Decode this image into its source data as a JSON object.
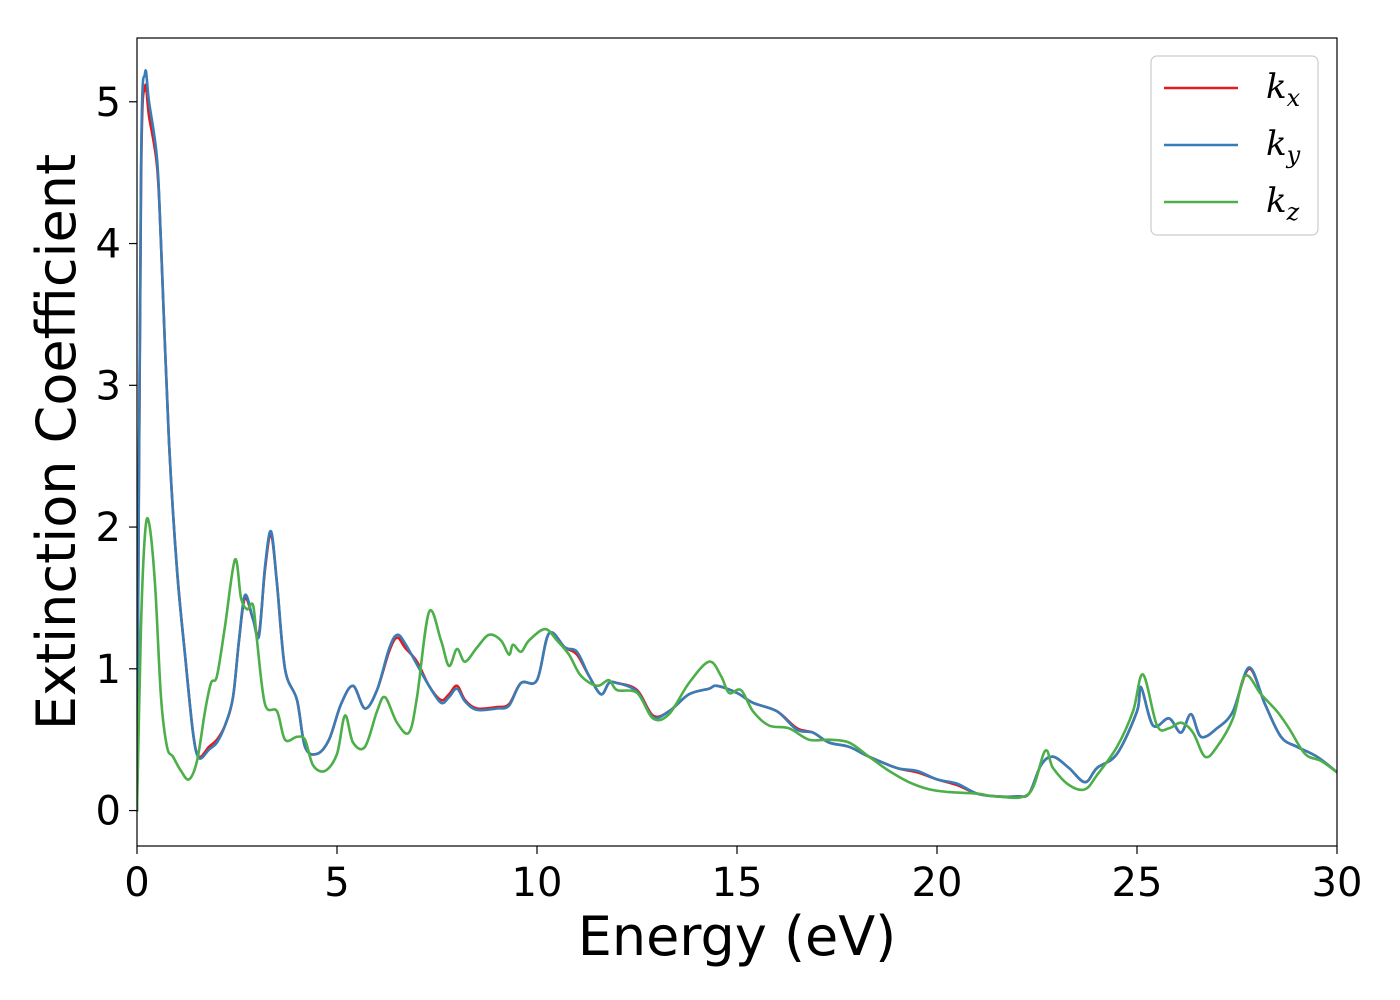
{
  "chart_data": {
    "type": "line",
    "title": "",
    "xlabel": "Energy (eV)",
    "ylabel": "Extinction Coefficient",
    "xlim": [
      0,
      30
    ],
    "ylim": [
      -0.25,
      5.45
    ],
    "xticks": [
      0,
      5,
      10,
      15,
      20,
      25,
      30
    ],
    "xtick_labels": [
      "0",
      "5",
      "10",
      "15",
      "20",
      "25",
      "30"
    ],
    "yticks": [
      0,
      1,
      2,
      3,
      4,
      5
    ],
    "ytick_labels": [
      "0",
      "1",
      "2",
      "3",
      "4",
      "5"
    ],
    "grid": false,
    "legend_position": "top-right",
    "series": [
      {
        "name": "k",
        "subscript": "x",
        "color": "#e41a1c",
        "points": [
          [
            0,
            0
          ],
          [
            0.1,
            4.4
          ],
          [
            0.2,
            5.1
          ],
          [
            0.3,
            4.9
          ],
          [
            0.5,
            4.55
          ],
          [
            0.6,
            4.0
          ],
          [
            0.8,
            2.6
          ],
          [
            1.0,
            1.7
          ],
          [
            1.2,
            1.1
          ],
          [
            1.4,
            0.55
          ],
          [
            1.55,
            0.38
          ],
          [
            1.8,
            0.45
          ],
          [
            2.0,
            0.5
          ],
          [
            2.2,
            0.6
          ],
          [
            2.4,
            0.8
          ],
          [
            2.55,
            1.2
          ],
          [
            2.7,
            1.5
          ],
          [
            2.9,
            1.35
          ],
          [
            3.05,
            1.25
          ],
          [
            3.2,
            1.7
          ],
          [
            3.35,
            1.95
          ],
          [
            3.5,
            1.6
          ],
          [
            3.7,
            1.0
          ],
          [
            4.0,
            0.78
          ],
          [
            4.2,
            0.45
          ],
          [
            4.5,
            0.4
          ],
          [
            4.8,
            0.5
          ],
          [
            5.1,
            0.75
          ],
          [
            5.4,
            0.88
          ],
          [
            5.7,
            0.72
          ],
          [
            6.0,
            0.85
          ],
          [
            6.3,
            1.12
          ],
          [
            6.5,
            1.22
          ],
          [
            6.7,
            1.15
          ],
          [
            7.0,
            1.05
          ],
          [
            7.3,
            0.88
          ],
          [
            7.6,
            0.78
          ],
          [
            7.8,
            0.82
          ],
          [
            8.0,
            0.88
          ],
          [
            8.2,
            0.78
          ],
          [
            8.5,
            0.72
          ],
          [
            9.0,
            0.73
          ],
          [
            9.3,
            0.75
          ],
          [
            9.6,
            0.9
          ],
          [
            10.0,
            0.92
          ],
          [
            10.3,
            1.25
          ],
          [
            10.7,
            1.15
          ],
          [
            11.0,
            1.1
          ],
          [
            11.3,
            0.95
          ],
          [
            11.6,
            0.82
          ],
          [
            11.8,
            0.9
          ],
          [
            12.0,
            0.9
          ],
          [
            12.5,
            0.85
          ],
          [
            12.9,
            0.67
          ],
          [
            13.3,
            0.7
          ],
          [
            13.8,
            0.82
          ],
          [
            14.3,
            0.86
          ],
          [
            14.5,
            0.88
          ],
          [
            15.0,
            0.83
          ],
          [
            15.4,
            0.76
          ],
          [
            16.0,
            0.7
          ],
          [
            16.5,
            0.58
          ],
          [
            16.9,
            0.55
          ],
          [
            17.3,
            0.48
          ],
          [
            17.8,
            0.45
          ],
          [
            18.3,
            0.38
          ],
          [
            19.0,
            0.3
          ],
          [
            19.5,
            0.27
          ],
          [
            20.0,
            0.22
          ],
          [
            20.5,
            0.18
          ],
          [
            21.0,
            0.12
          ],
          [
            21.5,
            0.1
          ],
          [
            22.0,
            0.1
          ],
          [
            22.3,
            0.12
          ],
          [
            22.6,
            0.32
          ],
          [
            22.9,
            0.38
          ],
          [
            23.3,
            0.3
          ],
          [
            23.7,
            0.2
          ],
          [
            24.0,
            0.3
          ],
          [
            24.5,
            0.4
          ],
          [
            25.0,
            0.7
          ],
          [
            25.1,
            0.87
          ],
          [
            25.4,
            0.6
          ],
          [
            25.8,
            0.65
          ],
          [
            26.1,
            0.55
          ],
          [
            26.35,
            0.68
          ],
          [
            26.6,
            0.52
          ],
          [
            27.0,
            0.58
          ],
          [
            27.4,
            0.7
          ],
          [
            27.8,
            1.0
          ],
          [
            28.2,
            0.75
          ],
          [
            28.6,
            0.52
          ],
          [
            29.0,
            0.45
          ],
          [
            29.5,
            0.38
          ],
          [
            30.0,
            0.27
          ]
        ]
      },
      {
        "name": "k",
        "subscript": "y",
        "color": "#377eb8",
        "points": [
          [
            0,
            0
          ],
          [
            0.1,
            4.5
          ],
          [
            0.2,
            5.2
          ],
          [
            0.3,
            5.0
          ],
          [
            0.5,
            4.6
          ],
          [
            0.6,
            4.0
          ],
          [
            0.8,
            2.6
          ],
          [
            1.0,
            1.7
          ],
          [
            1.2,
            1.1
          ],
          [
            1.4,
            0.55
          ],
          [
            1.55,
            0.37
          ],
          [
            1.8,
            0.43
          ],
          [
            2.0,
            0.48
          ],
          [
            2.2,
            0.6
          ],
          [
            2.4,
            0.8
          ],
          [
            2.55,
            1.2
          ],
          [
            2.7,
            1.52
          ],
          [
            2.9,
            1.35
          ],
          [
            3.05,
            1.23
          ],
          [
            3.2,
            1.72
          ],
          [
            3.35,
            1.97
          ],
          [
            3.5,
            1.6
          ],
          [
            3.7,
            1.0
          ],
          [
            4.0,
            0.78
          ],
          [
            4.2,
            0.45
          ],
          [
            4.5,
            0.4
          ],
          [
            4.8,
            0.5
          ],
          [
            5.1,
            0.75
          ],
          [
            5.4,
            0.88
          ],
          [
            5.7,
            0.72
          ],
          [
            6.0,
            0.85
          ],
          [
            6.3,
            1.14
          ],
          [
            6.5,
            1.24
          ],
          [
            6.7,
            1.18
          ],
          [
            7.0,
            1.03
          ],
          [
            7.3,
            0.88
          ],
          [
            7.6,
            0.76
          ],
          [
            7.8,
            0.8
          ],
          [
            8.0,
            0.86
          ],
          [
            8.2,
            0.77
          ],
          [
            8.5,
            0.71
          ],
          [
            9.0,
            0.72
          ],
          [
            9.3,
            0.74
          ],
          [
            9.6,
            0.9
          ],
          [
            10.0,
            0.92
          ],
          [
            10.3,
            1.25
          ],
          [
            10.7,
            1.15
          ],
          [
            11.0,
            1.12
          ],
          [
            11.3,
            0.95
          ],
          [
            11.6,
            0.82
          ],
          [
            11.8,
            0.9
          ],
          [
            12.0,
            0.9
          ],
          [
            12.5,
            0.84
          ],
          [
            12.9,
            0.66
          ],
          [
            13.3,
            0.7
          ],
          [
            13.8,
            0.82
          ],
          [
            14.3,
            0.86
          ],
          [
            14.5,
            0.88
          ],
          [
            15.0,
            0.83
          ],
          [
            15.4,
            0.76
          ],
          [
            16.0,
            0.7
          ],
          [
            16.5,
            0.57
          ],
          [
            16.9,
            0.55
          ],
          [
            17.3,
            0.48
          ],
          [
            17.8,
            0.45
          ],
          [
            18.3,
            0.38
          ],
          [
            19.0,
            0.3
          ],
          [
            19.5,
            0.28
          ],
          [
            20.0,
            0.22
          ],
          [
            20.5,
            0.19
          ],
          [
            21.0,
            0.12
          ],
          [
            21.5,
            0.1
          ],
          [
            22.0,
            0.1
          ],
          [
            22.3,
            0.12
          ],
          [
            22.6,
            0.32
          ],
          [
            22.9,
            0.38
          ],
          [
            23.3,
            0.3
          ],
          [
            23.7,
            0.2
          ],
          [
            24.0,
            0.3
          ],
          [
            24.5,
            0.4
          ],
          [
            25.0,
            0.7
          ],
          [
            25.1,
            0.87
          ],
          [
            25.4,
            0.6
          ],
          [
            25.8,
            0.65
          ],
          [
            26.1,
            0.55
          ],
          [
            26.35,
            0.68
          ],
          [
            26.6,
            0.52
          ],
          [
            27.0,
            0.58
          ],
          [
            27.4,
            0.7
          ],
          [
            27.8,
            1.01
          ],
          [
            28.2,
            0.75
          ],
          [
            28.6,
            0.52
          ],
          [
            29.0,
            0.45
          ],
          [
            29.5,
            0.38
          ],
          [
            30.0,
            0.27
          ]
        ]
      },
      {
        "name": "k",
        "subscript": "z",
        "color": "#4daf4a",
        "points": [
          [
            0,
            0
          ],
          [
            0.1,
            1.3
          ],
          [
            0.2,
            1.95
          ],
          [
            0.3,
            2.03
          ],
          [
            0.45,
            1.6
          ],
          [
            0.6,
            0.8
          ],
          [
            0.75,
            0.45
          ],
          [
            0.9,
            0.38
          ],
          [
            1.1,
            0.28
          ],
          [
            1.3,
            0.22
          ],
          [
            1.5,
            0.35
          ],
          [
            1.7,
            0.7
          ],
          [
            1.85,
            0.9
          ],
          [
            2.0,
            0.95
          ],
          [
            2.2,
            1.3
          ],
          [
            2.45,
            1.77
          ],
          [
            2.6,
            1.5
          ],
          [
            2.75,
            1.42
          ],
          [
            2.9,
            1.45
          ],
          [
            3.0,
            1.2
          ],
          [
            3.2,
            0.75
          ],
          [
            3.5,
            0.7
          ],
          [
            3.7,
            0.5
          ],
          [
            4.0,
            0.52
          ],
          [
            4.2,
            0.5
          ],
          [
            4.4,
            0.32
          ],
          [
            4.7,
            0.28
          ],
          [
            5.0,
            0.4
          ],
          [
            5.2,
            0.67
          ],
          [
            5.4,
            0.48
          ],
          [
            5.7,
            0.45
          ],
          [
            6.0,
            0.7
          ],
          [
            6.2,
            0.8
          ],
          [
            6.5,
            0.62
          ],
          [
            6.8,
            0.55
          ],
          [
            7.0,
            0.8
          ],
          [
            7.3,
            1.4
          ],
          [
            7.6,
            1.2
          ],
          [
            7.8,
            1.02
          ],
          [
            8.0,
            1.14
          ],
          [
            8.2,
            1.05
          ],
          [
            8.5,
            1.15
          ],
          [
            8.8,
            1.24
          ],
          [
            9.1,
            1.2
          ],
          [
            9.3,
            1.1
          ],
          [
            9.4,
            1.17
          ],
          [
            9.6,
            1.12
          ],
          [
            9.8,
            1.2
          ],
          [
            10.2,
            1.28
          ],
          [
            10.5,
            1.2
          ],
          [
            10.8,
            1.1
          ],
          [
            11.1,
            0.95
          ],
          [
            11.5,
            0.88
          ],
          [
            11.8,
            0.92
          ],
          [
            12.0,
            0.85
          ],
          [
            12.5,
            0.83
          ],
          [
            12.9,
            0.65
          ],
          [
            13.3,
            0.68
          ],
          [
            13.8,
            0.9
          ],
          [
            14.3,
            1.05
          ],
          [
            14.6,
            0.95
          ],
          [
            14.8,
            0.83
          ],
          [
            15.1,
            0.85
          ],
          [
            15.4,
            0.7
          ],
          [
            15.8,
            0.6
          ],
          [
            16.3,
            0.58
          ],
          [
            16.8,
            0.5
          ],
          [
            17.3,
            0.5
          ],
          [
            17.8,
            0.48
          ],
          [
            18.3,
            0.38
          ],
          [
            18.8,
            0.28
          ],
          [
            19.3,
            0.2
          ],
          [
            19.8,
            0.15
          ],
          [
            20.3,
            0.13
          ],
          [
            21.0,
            0.12
          ],
          [
            21.5,
            0.1
          ],
          [
            22.3,
            0.12
          ],
          [
            22.7,
            0.42
          ],
          [
            22.9,
            0.3
          ],
          [
            23.3,
            0.18
          ],
          [
            23.7,
            0.15
          ],
          [
            24.0,
            0.25
          ],
          [
            24.5,
            0.45
          ],
          [
            24.9,
            0.7
          ],
          [
            25.15,
            0.96
          ],
          [
            25.5,
            0.6
          ],
          [
            25.8,
            0.58
          ],
          [
            26.1,
            0.62
          ],
          [
            26.4,
            0.55
          ],
          [
            26.7,
            0.38
          ],
          [
            27.0,
            0.45
          ],
          [
            27.4,
            0.65
          ],
          [
            27.7,
            0.95
          ],
          [
            28.1,
            0.82
          ],
          [
            28.5,
            0.7
          ],
          [
            28.8,
            0.58
          ],
          [
            29.2,
            0.4
          ],
          [
            29.6,
            0.35
          ],
          [
            30.0,
            0.27
          ]
        ]
      }
    ]
  }
}
